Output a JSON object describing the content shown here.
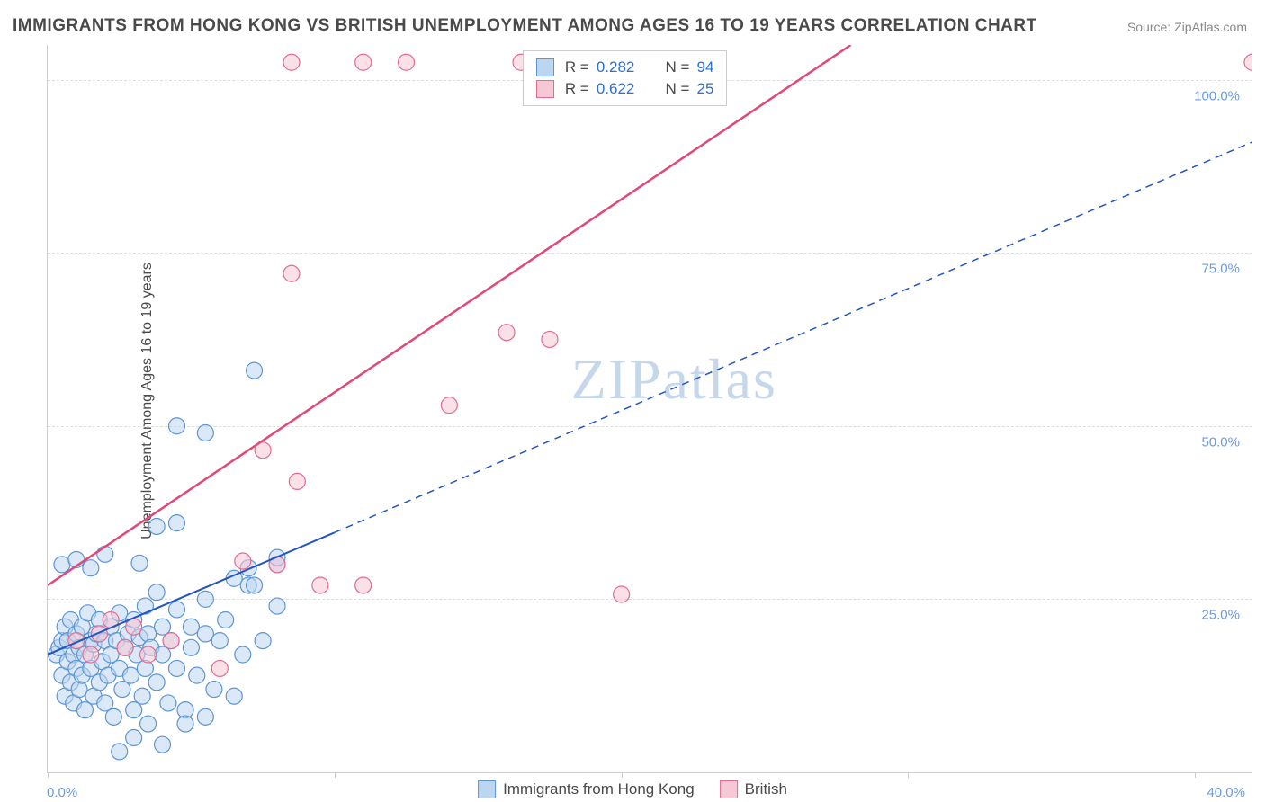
{
  "title": "IMMIGRANTS FROM HONG KONG VS BRITISH UNEMPLOYMENT AMONG AGES 16 TO 19 YEARS CORRELATION CHART",
  "source": "Source: ZipAtlas.com",
  "watermark_zip": "ZIP",
  "watermark_atlas": "atlas",
  "y_axis_label": "Unemployment Among Ages 16 to 19 years",
  "chart": {
    "type": "scatter",
    "xlim": [
      0,
      42
    ],
    "ylim": [
      0,
      105
    ],
    "x_ticks": [
      0,
      10,
      20,
      30,
      40
    ],
    "x_tick_labels": [
      "0.0%",
      "",
      "",
      "",
      "40.0%"
    ],
    "y_ticks": [
      25,
      50,
      75,
      100
    ],
    "y_tick_labels": [
      "25.0%",
      "50.0%",
      "75.0%",
      "100.0%"
    ],
    "y_tick_color": "#6a9be0",
    "x_tick_color": "#6a9be0",
    "grid_color": "#dddddd",
    "background_color": "#ffffff",
    "marker_radius": 9,
    "marker_stroke_width": 1.2,
    "series": [
      {
        "name": "Immigrants from Hong Kong",
        "fill": "#bdd6f0",
        "stroke": "#5b95d6",
        "fill_opacity": 0.55,
        "R": 0.282,
        "N": 94,
        "points": [
          [
            0.3,
            17
          ],
          [
            0.4,
            18
          ],
          [
            0.5,
            14
          ],
          [
            0.5,
            19
          ],
          [
            0.6,
            11
          ],
          [
            0.6,
            21
          ],
          [
            0.7,
            16
          ],
          [
            0.7,
            19
          ],
          [
            0.8,
            13
          ],
          [
            0.8,
            22
          ],
          [
            0.9,
            10
          ],
          [
            0.9,
            17
          ],
          [
            1.0,
            15
          ],
          [
            1.0,
            20
          ],
          [
            1.1,
            12
          ],
          [
            1.1,
            18
          ],
          [
            1.2,
            14
          ],
          [
            1.2,
            21
          ],
          [
            1.3,
            9
          ],
          [
            1.3,
            17
          ],
          [
            1.4,
            23
          ],
          [
            1.5,
            15
          ],
          [
            1.5,
            19
          ],
          [
            1.6,
            11
          ],
          [
            1.6,
            18.5
          ],
          [
            1.7,
            20
          ],
          [
            1.8,
            13
          ],
          [
            1.8,
            22
          ],
          [
            1.9,
            16
          ],
          [
            2.0,
            10
          ],
          [
            2.0,
            19
          ],
          [
            2.1,
            14
          ],
          [
            2.2,
            21
          ],
          [
            2.2,
            17
          ],
          [
            2.3,
            8
          ],
          [
            2.4,
            19
          ],
          [
            2.5,
            15
          ],
          [
            2.5,
            23
          ],
          [
            2.6,
            12
          ],
          [
            2.7,
            18
          ],
          [
            2.8,
            20
          ],
          [
            2.9,
            14
          ],
          [
            3.0,
            9
          ],
          [
            3.0,
            22
          ],
          [
            3.1,
            17
          ],
          [
            3.2,
            19.5
          ],
          [
            3.3,
            11
          ],
          [
            3.4,
            15
          ],
          [
            3.4,
            24
          ],
          [
            3.5,
            20
          ],
          [
            3.6,
            18
          ],
          [
            3.8,
            13
          ],
          [
            3.8,
            26
          ],
          [
            4.0,
            21
          ],
          [
            4.0,
            17
          ],
          [
            4.2,
            10
          ],
          [
            4.3,
            19
          ],
          [
            4.5,
            23.5
          ],
          [
            4.5,
            15
          ],
          [
            4.8,
            9
          ],
          [
            5.0,
            21
          ],
          [
            5.0,
            18
          ],
          [
            5.2,
            14
          ],
          [
            5.5,
            25
          ],
          [
            5.5,
            20
          ],
          [
            5.8,
            12
          ],
          [
            6.0,
            19
          ],
          [
            6.2,
            22
          ],
          [
            6.5,
            11
          ],
          [
            6.5,
            28
          ],
          [
            6.8,
            17
          ],
          [
            7.0,
            27
          ],
          [
            7.0,
            29.5
          ],
          [
            7.2,
            27
          ],
          [
            7.5,
            19
          ],
          [
            8.0,
            30
          ],
          [
            8.0,
            24
          ],
          [
            0.5,
            30
          ],
          [
            1.0,
            30.7
          ],
          [
            1.5,
            29.5
          ],
          [
            2.5,
            3
          ],
          [
            3.0,
            5
          ],
          [
            3.5,
            7
          ],
          [
            4.0,
            4
          ],
          [
            4.8,
            7
          ],
          [
            5.5,
            8
          ],
          [
            2.0,
            31.5
          ],
          [
            3.2,
            30.2
          ],
          [
            3.8,
            35.5
          ],
          [
            4.5,
            36
          ],
          [
            4.5,
            50
          ],
          [
            5.5,
            49
          ],
          [
            7.2,
            58
          ],
          [
            8.0,
            31
          ]
        ],
        "trend": {
          "x1": 0,
          "y1": 17,
          "x2": 42,
          "y2": 91,
          "solid_until_x": 10,
          "color": "#2256c4",
          "width": 2
        }
      },
      {
        "name": "British",
        "fill": "#f6c7d4",
        "stroke": "#e36b92",
        "fill_opacity": 0.55,
        "R": 0.622,
        "N": 25,
        "points": [
          [
            1.0,
            19
          ],
          [
            1.5,
            17
          ],
          [
            1.8,
            20
          ],
          [
            2.2,
            22
          ],
          [
            2.7,
            18
          ],
          [
            3.0,
            21
          ],
          [
            3.5,
            17
          ],
          [
            4.3,
            19
          ],
          [
            6.0,
            15
          ],
          [
            6.8,
            30.5
          ],
          [
            8.0,
            30
          ],
          [
            9.5,
            27
          ],
          [
            11.0,
            27
          ],
          [
            7.5,
            46.5
          ],
          [
            8.7,
            42
          ],
          [
            8.5,
            72
          ],
          [
            14.0,
            53
          ],
          [
            16.0,
            63.5
          ],
          [
            17.5,
            62.5
          ],
          [
            20.0,
            25.7
          ],
          [
            8.5,
            102.5
          ],
          [
            11.0,
            102.5
          ],
          [
            12.5,
            102.5
          ],
          [
            16.5,
            102.5
          ],
          [
            42.0,
            102.5
          ]
        ],
        "trend": {
          "x1": 0,
          "y1": 27,
          "x2": 28,
          "y2": 105,
          "color": "#e24876",
          "width": 2.5
        }
      }
    ],
    "legend_top": {
      "R_label": "R =",
      "N_label": "N =",
      "rows": [
        {
          "swatch_fill": "#bdd6f0",
          "swatch_stroke": "#5b95d6",
          "R": "0.282",
          "N": "94"
        },
        {
          "swatch_fill": "#f6c7d4",
          "swatch_stroke": "#e36b92",
          "R": "0.622",
          "N": "25"
        }
      ]
    },
    "legend_bottom": [
      {
        "swatch_fill": "#bdd6f0",
        "swatch_stroke": "#5b95d6",
        "label": "Immigrants from Hong Kong"
      },
      {
        "swatch_fill": "#f6c7d4",
        "swatch_stroke": "#e36b92",
        "label": "British"
      }
    ]
  }
}
